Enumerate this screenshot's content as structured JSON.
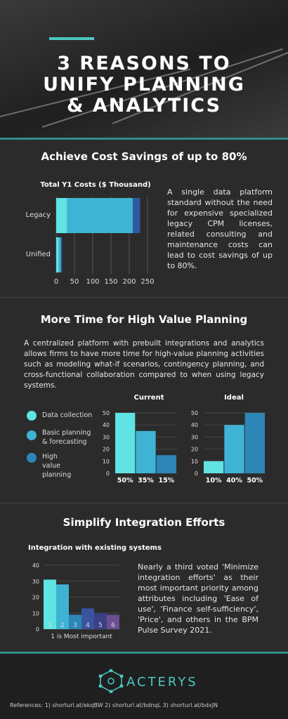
{
  "hero": {
    "title_lines": [
      "3 REASONS TO",
      "UNIFY PLANNING",
      "& ANALYTICS"
    ]
  },
  "section1": {
    "heading": "Achieve Cost Savings of up to 80%",
    "text": "A single data platform standard without the need for expensive specialized legacy CPM licenses, related consulting and maintenance costs can lead to cost savings of up to 80%."
  },
  "section2": {
    "heading": "More Time for High Value Planning",
    "text": "A centralized platform with prebuilt integrations and analytics allows firms to have more time for high-value planning activities such as modeling what-if scenarios, contingency planning, and cross-functional collaboration compared to when using legacy systems.",
    "legend": [
      {
        "label": "Data collection",
        "color": "#5fe3e3"
      },
      {
        "label": "Basic planning & forecasting",
        "color": "#3fb3d3"
      },
      {
        "label": "High value planning",
        "color": "#2d86b6"
      }
    ]
  },
  "section3": {
    "heading": "Simplify Integration Efforts",
    "chart_title": "Integration with existing systems",
    "text": "Nearly a third voted 'Minimize integration efforts' as their most important priority among attributes including 'Ease of use', 'Finance self-sufficiency', 'Price', and others in the BPM Pulse Survey 2021."
  },
  "brand": {
    "name": "ACTERYS"
  },
  "footer": {
    "references": "References: 1) shorturl.at/ekqBW 2) shorturl.at/bdnqL 3) shorturl.at/bdxJN"
  },
  "colors": {
    "accent": "#4cc7c0",
    "c1": "#5fe3e3",
    "c2": "#3fb3d3",
    "c3": "#2d86b6",
    "c4": "#2f5a9e"
  },
  "chart_data": [
    {
      "type": "bar",
      "orientation": "horizontal-stacked",
      "title": "Total Y1 Costs ($ Thousand)",
      "categories": [
        "Legacy",
        "Unified"
      ],
      "series": [
        {
          "values": [
            30,
            7
          ]
        },
        {
          "values": [
            180,
            6
          ]
        },
        {
          "values": [
            20,
            3
          ]
        }
      ],
      "xlim": [
        0,
        250
      ],
      "xticks": [
        0,
        50,
        100,
        150,
        200,
        250
      ]
    },
    {
      "type": "bar",
      "title": "Current",
      "categories": [
        "50%",
        "35%",
        "15%"
      ],
      "values": [
        50,
        35,
        15
      ],
      "ylim": [
        0,
        50
      ],
      "yticks": [
        0,
        10,
        20,
        30,
        40,
        50
      ]
    },
    {
      "type": "bar",
      "title": "Ideal",
      "categories": [
        "10%",
        "40%",
        "50%"
      ],
      "values": [
        10,
        40,
        50
      ],
      "ylim": [
        0,
        50
      ],
      "yticks": [
        0,
        10,
        20,
        30,
        40,
        50
      ]
    },
    {
      "type": "bar",
      "title": "Integration with existing systems",
      "categories": [
        "1",
        "2",
        "3",
        "4",
        "5",
        "6"
      ],
      "values": [
        31,
        28,
        9,
        13,
        10,
        9
      ],
      "xlabel": "1 is Most important",
      "ylim": [
        0,
        40
      ],
      "yticks": [
        0,
        10,
        20,
        30,
        40
      ]
    }
  ]
}
